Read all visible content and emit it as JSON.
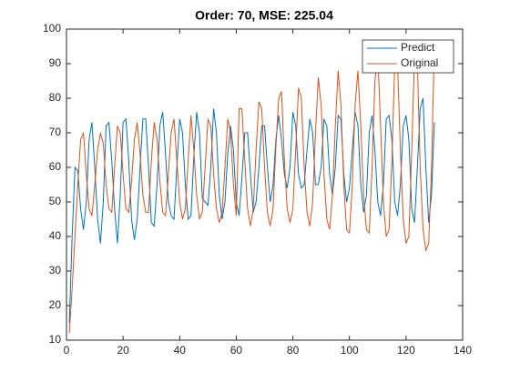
{
  "chart_data": {
    "type": "line",
    "title": "Order: 70, MSE: 225.04",
    "x": [
      1,
      2,
      3,
      4,
      5,
      6,
      7,
      8,
      9,
      10,
      11,
      12,
      13,
      14,
      15,
      16,
      17,
      18,
      19,
      20,
      21,
      22,
      23,
      24,
      25,
      26,
      27,
      28,
      29,
      30,
      31,
      32,
      33,
      34,
      35,
      36,
      37,
      38,
      39,
      40,
      41,
      42,
      43,
      44,
      45,
      46,
      47,
      48,
      49,
      50,
      51,
      52,
      53,
      54,
      55,
      56,
      57,
      58,
      59,
      60,
      61,
      62,
      63,
      64,
      65,
      66,
      67,
      68,
      69,
      70,
      71,
      72,
      73,
      74,
      75,
      76,
      77,
      78,
      79,
      80,
      81,
      82,
      83,
      84,
      85,
      86,
      87,
      88,
      89,
      90,
      91,
      92,
      93,
      94,
      95,
      96,
      97,
      98,
      99,
      100,
      101,
      102,
      103,
      104,
      105,
      106,
      107,
      108,
      109,
      110,
      111,
      112,
      113,
      114,
      115,
      116,
      117,
      118,
      119,
      120,
      121,
      122,
      123,
      124,
      125,
      126,
      127,
      128,
      129,
      130
    ],
    "series": [
      {
        "name": "Predict",
        "color": "#0072bd",
        "values": [
          15,
          40,
          60,
          59,
          48,
          42,
          50,
          68,
          73,
          60,
          45,
          38,
          50,
          72,
          73,
          62,
          48,
          38,
          52,
          73,
          74,
          62,
          45,
          39,
          45,
          60,
          74,
          74,
          60,
          44,
          43,
          55,
          72,
          76,
          64,
          50,
          46,
          45,
          60,
          74,
          70,
          55,
          45,
          46,
          63,
          76,
          70,
          51,
          50,
          49,
          60,
          77,
          70,
          52,
          45,
          50,
          64,
          72,
          65,
          50,
          46,
          57,
          70,
          70,
          58,
          47,
          50,
          60,
          72,
          72,
          60,
          50,
          55,
          68,
          75,
          68,
          58,
          54,
          60,
          76,
          72,
          58,
          54,
          55,
          65,
          74,
          70,
          55,
          55,
          60,
          74,
          72,
          58,
          52,
          60,
          75,
          74,
          58,
          50,
          54,
          65,
          76,
          72,
          55,
          47,
          52,
          70,
          75,
          65,
          50,
          46,
          55,
          74,
          75,
          68,
          50,
          46,
          55,
          72,
          75,
          68,
          48,
          44,
          60,
          77,
          80,
          60,
          44,
          52,
          73
        ]
      },
      {
        "name": "Original",
        "color": "#d95319",
        "values": [
          12,
          25,
          40,
          55,
          68,
          70,
          58,
          48,
          46,
          55,
          65,
          70,
          67,
          55,
          48,
          47,
          60,
          72,
          70,
          58,
          48,
          47,
          56,
          68,
          73,
          64,
          52,
          47,
          47,
          62,
          73,
          68,
          56,
          47,
          46,
          58,
          70,
          74,
          62,
          50,
          45,
          48,
          62,
          75,
          65,
          52,
          45,
          47,
          60,
          74,
          72,
          58,
          48,
          44,
          47,
          60,
          74,
          70,
          55,
          46,
          77,
          77,
          62,
          48,
          43,
          48,
          65,
          79,
          77,
          60,
          47,
          43,
          48,
          66,
          80,
          82,
          62,
          48,
          44,
          48,
          65,
          83,
          80,
          60,
          47,
          43,
          50,
          70,
          86,
          78,
          58,
          45,
          42,
          52,
          72,
          88,
          78,
          55,
          42,
          41,
          55,
          78,
          88,
          72,
          52,
          42,
          41,
          60,
          85,
          93,
          72,
          50,
          40,
          42,
          62,
          90,
          90,
          65,
          45,
          38,
          40,
          65,
          92,
          90,
          60,
          42,
          36,
          38,
          60,
          95
        ]
      }
    ],
    "xlim": [
      0,
      140
    ],
    "xticks": [
      0,
      20,
      40,
      60,
      80,
      100,
      120,
      140
    ],
    "ylim": [
      10,
      100
    ],
    "yticks": [
      10,
      20,
      30,
      40,
      50,
      60,
      70,
      80,
      90,
      100
    ],
    "legend": "upper right"
  }
}
